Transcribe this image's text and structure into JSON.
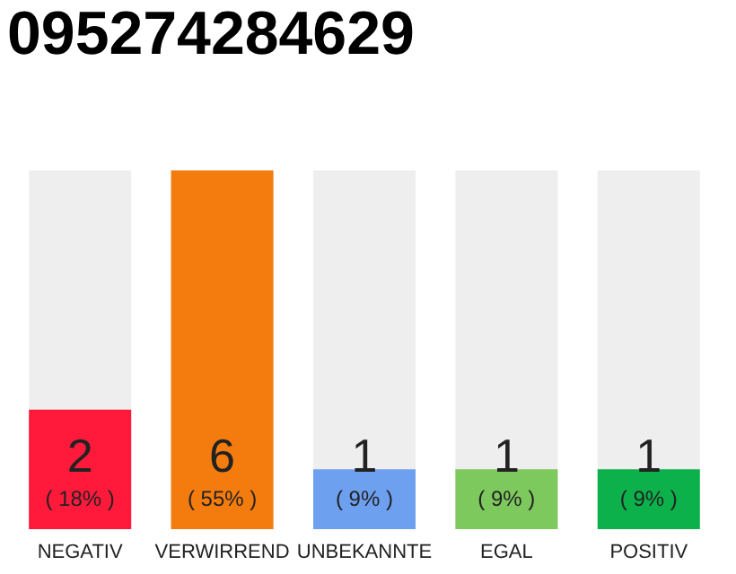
{
  "chart_data": {
    "type": "bar",
    "title": "095274284629",
    "categories": [
      "NEGATIV",
      "VERWIRREND",
      "UNBEKANNTE",
      "EGAL",
      "POSITIV"
    ],
    "values": [
      2,
      6,
      1,
      1,
      1
    ],
    "colors": [
      "#ff1a3c",
      "#f47c0f",
      "#6ea0f0",
      "#7dc95e",
      "#0db14b"
    ],
    "value_labels": [
      "2\n( 18% )",
      "6\n( 55% )",
      "1\n( 9% )",
      "1\n( 9% )",
      "1\n( 9% )"
    ],
    "grid": false,
    "legend": false
  }
}
